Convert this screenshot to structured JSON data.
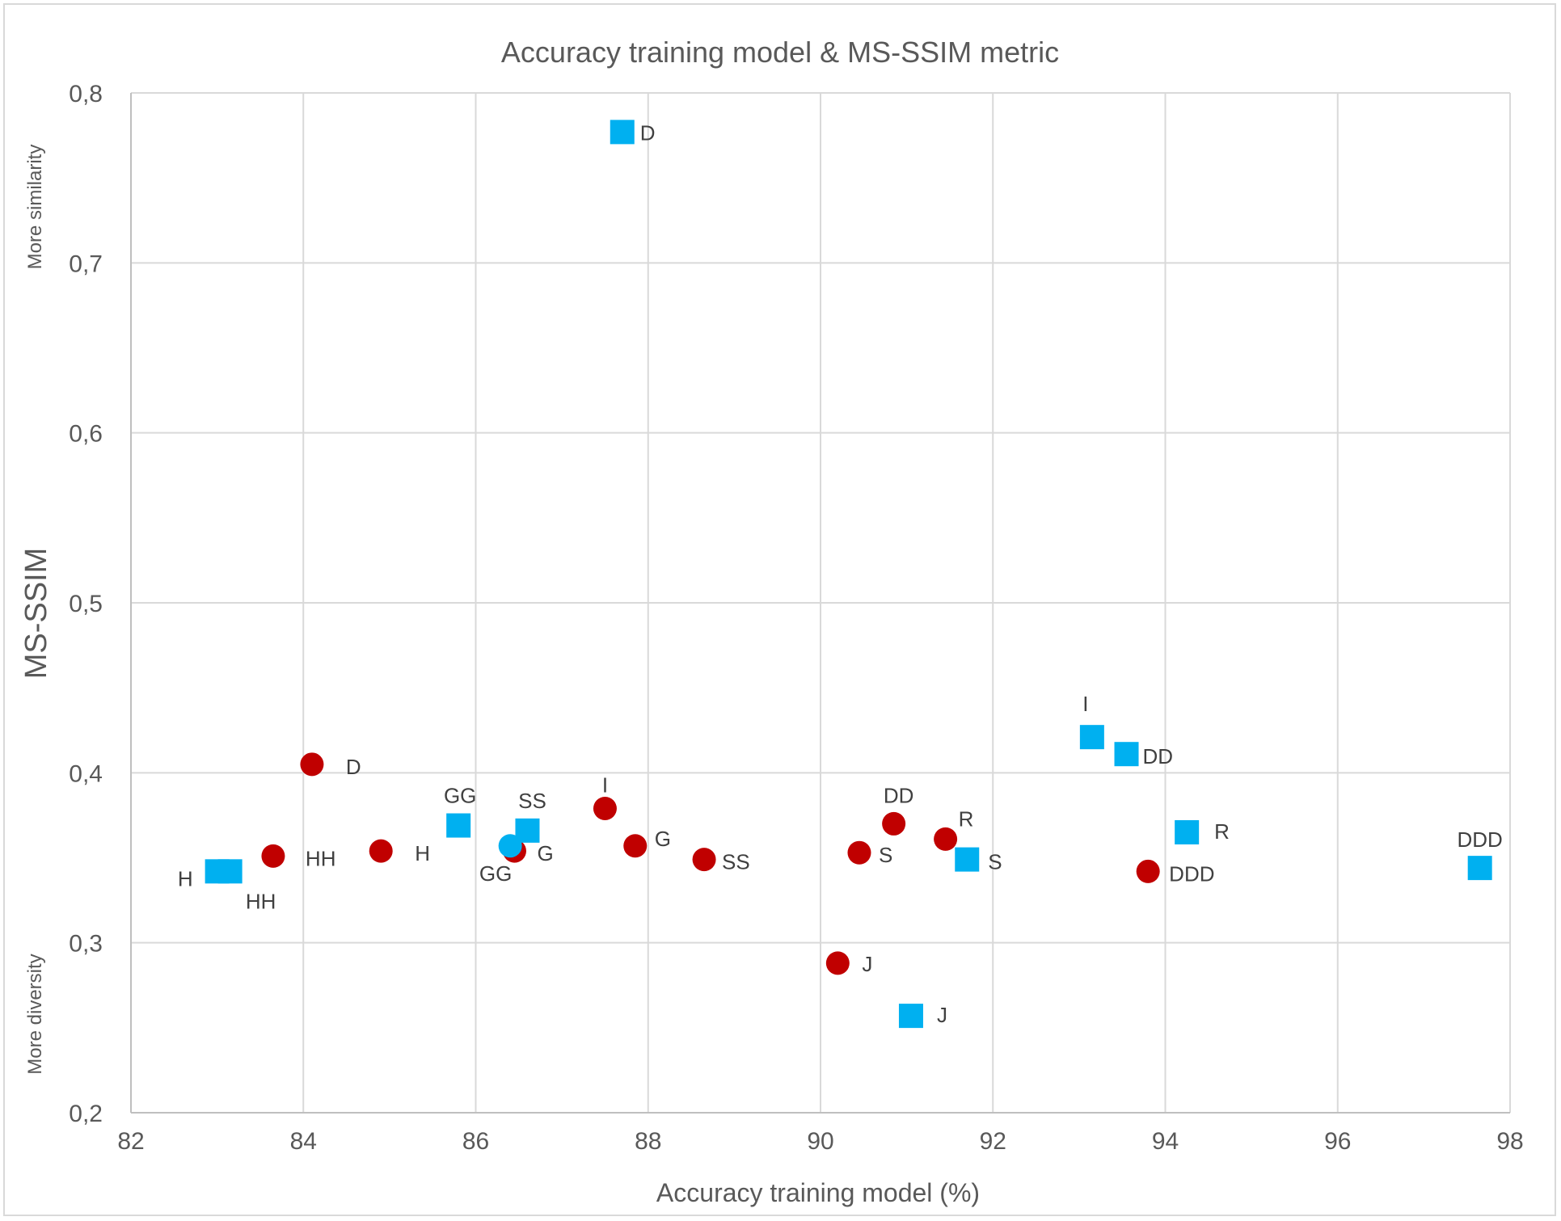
{
  "chart_data": {
    "type": "scatter",
    "title": "Accuracy training model & MS-SSIM metric",
    "xlabel": "Accuracy training model (%)",
    "ylabel": "MS-SSIM",
    "ylabel_top_note": "More similarity",
    "ylabel_bottom_note": "More diversity",
    "xlim": [
      82,
      98
    ],
    "ylim": [
      0.2,
      0.8
    ],
    "x_ticks": [
      "82",
      "84",
      "86",
      "88",
      "90",
      "92",
      "94",
      "96",
      "98"
    ],
    "y_ticks": [
      "0,2",
      "0,3",
      "0,4",
      "0,5",
      "0,6",
      "0,7",
      "0,8"
    ],
    "grid": true,
    "legend": "none",
    "series": [
      {
        "marker": "circle",
        "color": "#c00000",
        "points": [
          {
            "x": 84.1,
            "y": 0.405,
            "label": "D"
          },
          {
            "x": 83.65,
            "y": 0.351,
            "label": "HH"
          },
          {
            "x": 84.9,
            "y": 0.354,
            "label": "H"
          },
          {
            "x": 86.45,
            "y": 0.354,
            "label": "G"
          },
          {
            "x": 87.5,
            "y": 0.379,
            "label": "I"
          },
          {
            "x": 87.85,
            "y": 0.357,
            "label": "G"
          },
          {
            "x": 88.65,
            "y": 0.349,
            "label": "SS"
          },
          {
            "x": 90.2,
            "y": 0.288,
            "label": "J"
          },
          {
            "x": 90.45,
            "y": 0.353,
            "label": "S"
          },
          {
            "x": 90.85,
            "y": 0.37,
            "label": "DD"
          },
          {
            "x": 91.45,
            "y": 0.361,
            "label": "R"
          },
          {
            "x": 93.8,
            "y": 0.342,
            "label": "DDD"
          }
        ]
      },
      {
        "marker": "square",
        "color": "#00b0f0",
        "points": [
          {
            "x": 87.7,
            "y": 0.777,
            "label": "D"
          },
          {
            "x": 83.0,
            "y": 0.342,
            "label": "H"
          },
          {
            "x": 83.15,
            "y": 0.342,
            "label": "HH"
          },
          {
            "x": 85.8,
            "y": 0.369,
            "label": "GG"
          },
          {
            "x": 86.6,
            "y": 0.366,
            "label": "SS"
          },
          {
            "x": 91.05,
            "y": 0.257,
            "label": "J"
          },
          {
            "x": 91.7,
            "y": 0.349,
            "label": "S"
          },
          {
            "x": 93.15,
            "y": 0.421,
            "label": "I"
          },
          {
            "x": 93.55,
            "y": 0.411,
            "label": "DD"
          },
          {
            "x": 94.25,
            "y": 0.365,
            "label": "R"
          },
          {
            "x": 97.65,
            "y": 0.344,
            "label": "DDD"
          }
        ]
      },
      {
        "marker": "circle",
        "color": "#00b0f0",
        "points": [
          {
            "x": 86.4,
            "y": 0.357,
            "label": "GG"
          }
        ]
      }
    ]
  }
}
